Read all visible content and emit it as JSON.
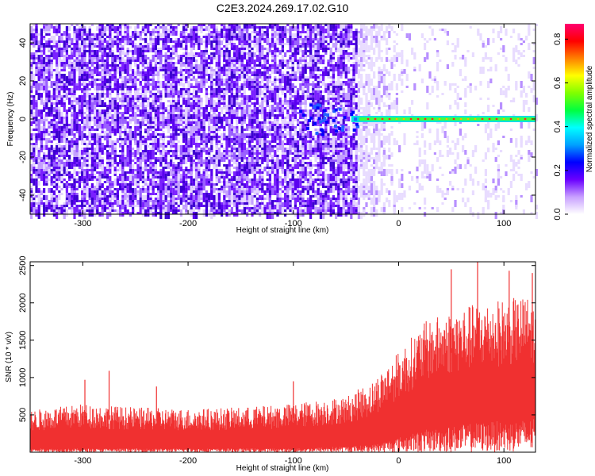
{
  "title": "C2E3.2024.269.17.02.G10",
  "chart_data": [
    {
      "type": "heatmap",
      "xlabel": "Height of straight line (km)",
      "ylabel": "Frequency (Hz)",
      "xlim": [
        -350,
        130
      ],
      "ylim": [
        -50,
        50
      ],
      "x_ticks": [
        -300,
        -200,
        -100,
        0,
        100
      ],
      "y_ticks": [
        -40,
        -20,
        0,
        20,
        40
      ],
      "colorbar": {
        "label": "Normalized spectral amplitude",
        "range": [
          0,
          0.87
        ],
        "ticks": [
          0.0,
          0.2,
          0.4,
          0.6,
          0.8
        ],
        "colors": [
          "#ffffff",
          "#c8a0ff",
          "#6a00ff",
          "#0000ff",
          "#00a0ff",
          "#00ffff",
          "#00ff40",
          "#80ff00",
          "#ffff00",
          "#ff8000",
          "#ff0000",
          "#ff0070"
        ]
      },
      "features": {
        "noise_dense_range_km": [
          -350,
          -40
        ],
        "noise_fade_range_km": [
          -40,
          0
        ],
        "signal_band_start_km": -45,
        "signal_band_frequency_hz": 0,
        "signal_band_amplitude": 0.5
      }
    },
    {
      "type": "area",
      "xlabel": "Height of straight line (km)",
      "ylabel": "SNR (10 * v/v)",
      "xlim": [
        -350,
        130
      ],
      "ylim": [
        0,
        2550
      ],
      "x_ticks": [
        -300,
        -200,
        -100,
        0,
        100
      ],
      "y_ticks": [
        500,
        1000,
        1500,
        2000,
        2500
      ],
      "color": "#f03030",
      "envelope": {
        "x": [
          -350,
          -300,
          -250,
          -200,
          -150,
          -100,
          -50,
          -25,
          0,
          25,
          50,
          75,
          100,
          130
        ],
        "max": [
          560,
          650,
          600,
          580,
          600,
          650,
          750,
          950,
          1350,
          1750,
          1900,
          2000,
          2050,
          2100
        ],
        "min": [
          50,
          50,
          50,
          50,
          50,
          50,
          80,
          100,
          200,
          300,
          350,
          400,
          420,
          450
        ]
      },
      "peaks": [
        {
          "x": -298,
          "y": 970
        },
        {
          "x": -275,
          "y": 1090
        },
        {
          "x": -230,
          "y": 880
        },
        {
          "x": -100,
          "y": 950
        },
        {
          "x": 50,
          "y": 2450
        },
        {
          "x": 75,
          "y": 2590
        },
        {
          "x": 105,
          "y": 2430
        },
        {
          "x": 127,
          "y": 2400
        }
      ]
    }
  ]
}
